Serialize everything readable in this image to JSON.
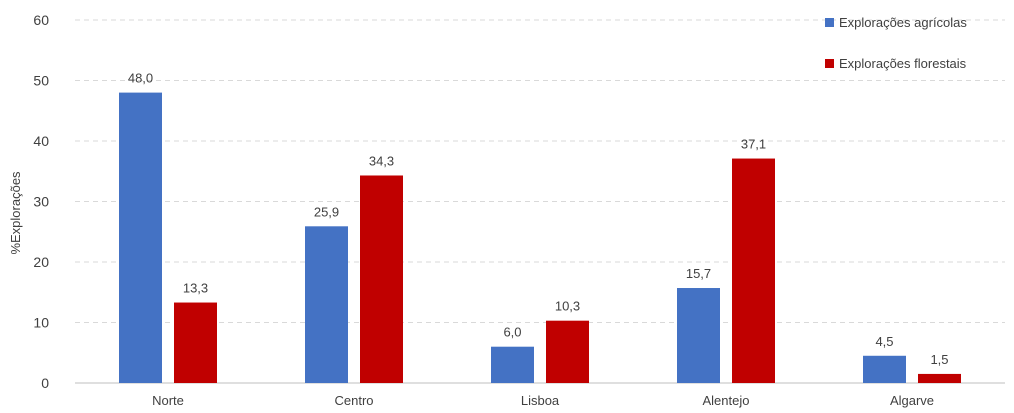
{
  "chart_data": {
    "type": "bar",
    "title": "",
    "xlabel": "",
    "ylabel": "%Explorações",
    "ylim": [
      0,
      60
    ],
    "yticks": [
      "0",
      "10",
      "20",
      "30",
      "40",
      "50",
      "60"
    ],
    "grid": true,
    "legend_position": "top-right",
    "categories": [
      "Norte",
      "Centro",
      "Lisboa",
      "Alentejo",
      "Algarve"
    ],
    "series": [
      {
        "name": "Explorações agrícolas",
        "color": "#4472c4",
        "values": [
          48.0,
          25.9,
          6.0,
          15.7,
          4.5
        ],
        "labels": [
          "48,0",
          "25,9",
          "6,0",
          "15,7",
          "4,5"
        ]
      },
      {
        "name": "Explorações florestais",
        "color": "#c00000",
        "values": [
          13.3,
          34.3,
          10.3,
          37.1,
          1.5
        ],
        "labels": [
          "13,3",
          "34,3",
          "10,3",
          "37,1",
          "1,5"
        ]
      }
    ]
  }
}
